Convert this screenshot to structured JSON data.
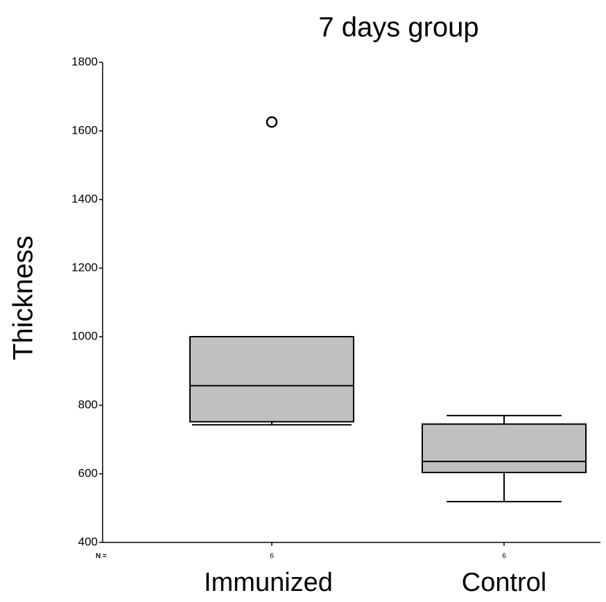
{
  "chart_data": {
    "type": "box",
    "title": "7 days group",
    "y_label": "Thickness",
    "categories": [
      "Immunized",
      "Control"
    ],
    "boxes": [
      {
        "min": 743,
        "q1": 752,
        "median": 857,
        "q3": 1000,
        "max": 1000,
        "outliers": [
          1626
        ]
      },
      {
        "min": 519,
        "q1": 604,
        "median": 636,
        "q3": 745,
        "max": 770,
        "outliers": []
      }
    ],
    "n_label": "N =",
    "n": [
      6,
      6
    ],
    "color": "#c0c0c0",
    "ylim": [
      400,
      1800
    ],
    "yticks": [
      400,
      600,
      800,
      1000,
      1200,
      1400,
      1600,
      1800
    ]
  }
}
